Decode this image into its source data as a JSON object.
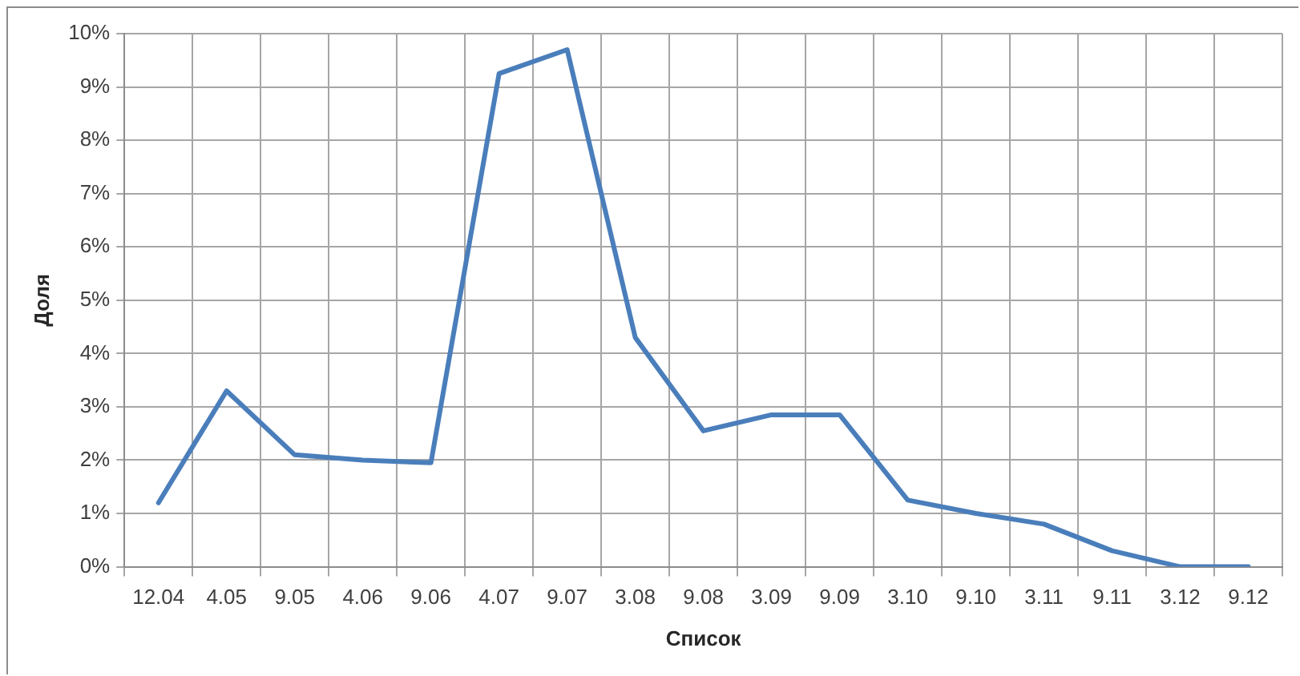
{
  "chart_data": {
    "type": "line",
    "xlabel": "Список",
    "ylabel": "Доля",
    "categories": [
      "12.04",
      "4.05",
      "9.05",
      "4.06",
      "9.06",
      "4.07",
      "9.07",
      "3.08",
      "9.08",
      "3.09",
      "9.09",
      "3.10",
      "9.10",
      "3.11",
      "9.11",
      "3.12",
      "9.12"
    ],
    "series": [
      {
        "color": "#4a7ebb",
        "values": [
          1.2,
          3.3,
          2.1,
          2.0,
          1.95,
          9.25,
          9.7,
          4.3,
          2.55,
          2.85,
          2.85,
          1.25,
          1.0,
          0.8,
          0.3,
          0,
          0
        ]
      }
    ],
    "ylim": [
      0,
      10
    ],
    "yticks": [
      {
        "value": 0,
        "label": "0%"
      },
      {
        "value": 1,
        "label": "1%"
      },
      {
        "value": 2,
        "label": "2%"
      },
      {
        "value": 3,
        "label": "3%"
      },
      {
        "value": 4,
        "label": "4%"
      },
      {
        "value": 5,
        "label": "5%"
      },
      {
        "value": 6,
        "label": "6%"
      },
      {
        "value": 7,
        "label": "7%"
      },
      {
        "value": 8,
        "label": "8%"
      },
      {
        "value": 9,
        "label": "9%"
      },
      {
        "value": 10,
        "label": "10%"
      }
    ],
    "grid": true,
    "marker": "none",
    "line_style": "solid",
    "legend": false
  }
}
